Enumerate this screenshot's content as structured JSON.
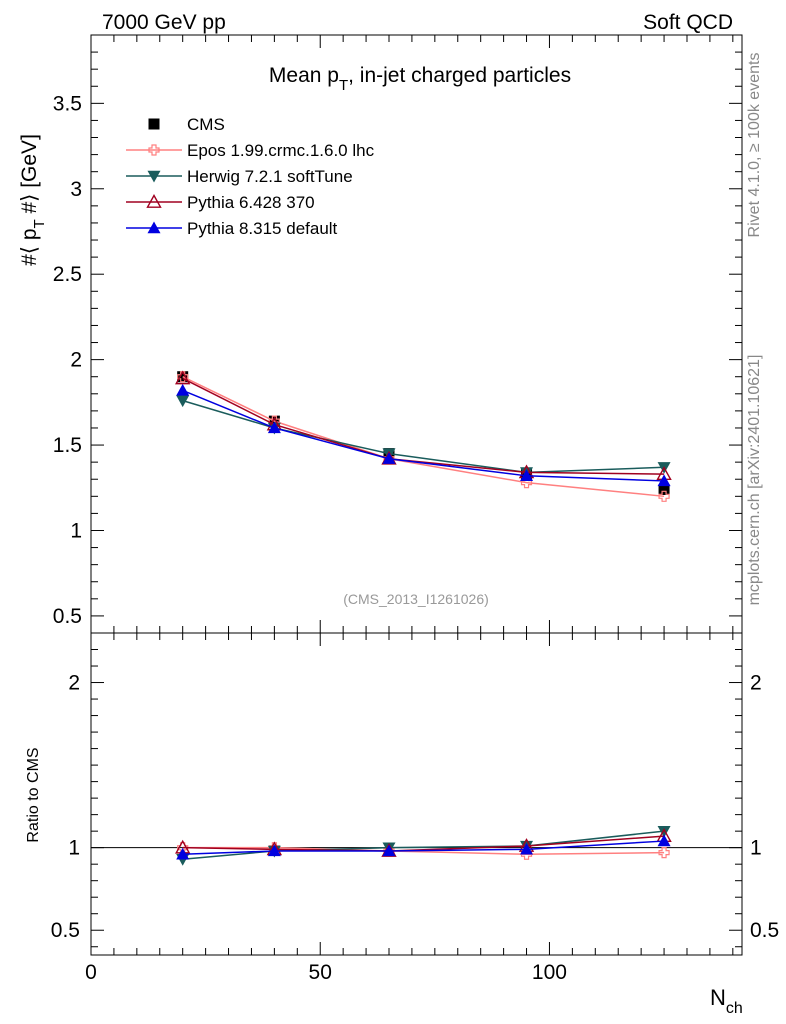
{
  "header": {
    "left": "7000 GeV pp",
    "right": "Soft QCD"
  },
  "side_labels": {
    "rivet": "Rivet 4.1.0, ≥ 100k events",
    "mcplots": "mcplots.cern.ch [arXiv:2401.10621]"
  },
  "chart_data": {
    "type": "line",
    "title": "Mean p_T, in-jet charged particles",
    "title_main": "Mean p",
    "title_sub": "T",
    "title_rest": ", in-jet charged particles",
    "watermark": "(CMS_2013_I1261026)",
    "xlabel": "N",
    "xlabel_sub": "ch",
    "ylabel": "#⟨ p_T #⟩ [GeV]",
    "ylabel_pre": "#⟨ p",
    "ylabel_sub": "T",
    "ylabel_post": " #⟩ [GeV]",
    "ratio_ylabel": "Ratio to CMS",
    "xlim": [
      0,
      142
    ],
    "ylim": [
      0.4,
      3.9
    ],
    "ratio_ylim": [
      0.35,
      2.3
    ],
    "x_ticks": [
      0,
      50,
      100
    ],
    "x_tick_labels": [
      "0",
      "50",
      "100"
    ],
    "y_ticks": [
      0.5,
      1,
      1.5,
      2,
      2.5,
      3,
      3.5
    ],
    "y_tick_labels": [
      "0.5",
      "1",
      "1.5",
      "2",
      "2.5",
      "3",
      "3.5"
    ],
    "ratio_ticks": [
      0.5,
      1,
      2
    ],
    "ratio_tick_labels": [
      "0.5",
      "1",
      "2"
    ],
    "x": [
      20,
      40,
      65,
      95,
      125
    ],
    "data": {
      "name": "CMS",
      "values": [
        1.9,
        1.64,
        1.45,
        1.33,
        1.24
      ],
      "color": "#000000",
      "marker": "square"
    },
    "series": [
      {
        "name": "Epos 1.99.crmc.1.6.0 lhc",
        "values": [
          1.9,
          1.64,
          1.42,
          1.28,
          1.2
        ],
        "ratio": [
          1.0,
          1.0,
          0.98,
          0.96,
          0.97
        ],
        "color": "#ff8080",
        "marker": "cross"
      },
      {
        "name": "Herwig 7.2.1 softTune",
        "values": [
          1.76,
          1.6,
          1.45,
          1.34,
          1.37
        ],
        "ratio": [
          0.93,
          0.98,
          1.0,
          1.01,
          1.1
        ],
        "color": "#1a5c5c",
        "marker": "triangle-down"
      },
      {
        "name": "Pythia 6.428 370",
        "values": [
          1.89,
          1.62,
          1.42,
          1.34,
          1.33
        ],
        "ratio": [
          1.0,
          0.99,
          0.98,
          1.01,
          1.07
        ],
        "color": "#a00020",
        "marker": "triangle-open"
      },
      {
        "name": "Pythia 8.315 default",
        "values": [
          1.82,
          1.6,
          1.42,
          1.32,
          1.29
        ],
        "ratio": [
          0.96,
          0.98,
          0.98,
          0.99,
          1.04
        ],
        "color": "#0000e0",
        "marker": "triangle-up"
      }
    ]
  }
}
